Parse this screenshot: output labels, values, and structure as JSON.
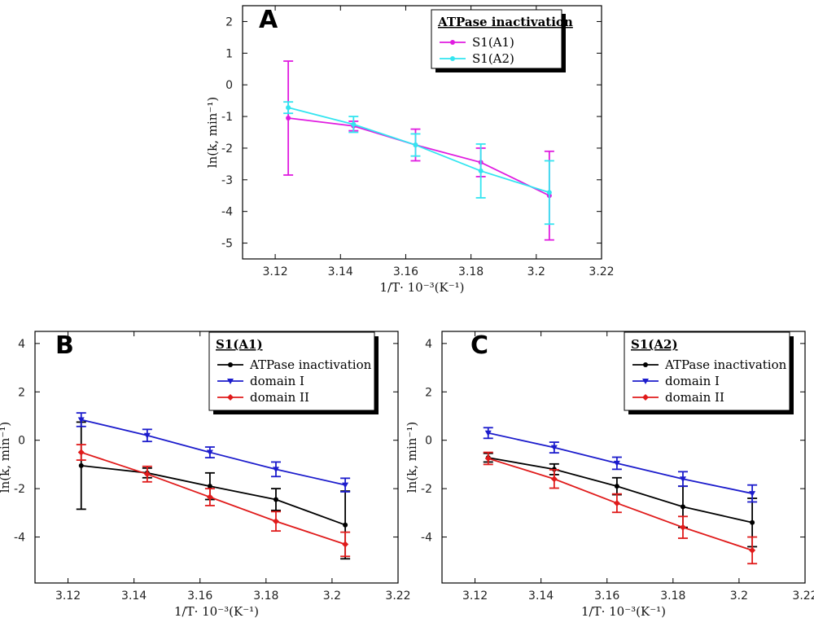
{
  "chart_data": [
    {
      "type": "line",
      "panel": "A",
      "legend_title": "ATPase inactivation",
      "legend_position": "top-right",
      "xlabel": "1/T· 10⁻³(K⁻¹)",
      "ylabel": "ln(k, min⁻¹)",
      "xlim": [
        3.11,
        3.22
      ],
      "ylim": [
        -5.5,
        2.5
      ],
      "x_ticks": [
        3.12,
        3.14,
        3.16,
        3.18,
        3.2,
        3.22
      ],
      "x_tick_labels": [
        "3.12",
        "3.14",
        "3.16",
        "3.18",
        "3.2",
        "3.22"
      ],
      "y_ticks": [
        2,
        1,
        0,
        -1,
        -2,
        -3,
        -4,
        -5
      ],
      "y_tick_labels": [
        "2",
        "1",
        "0",
        "-1",
        "-2",
        "-3",
        "-4",
        "-5"
      ],
      "x": [
        3.124,
        3.144,
        3.163,
        3.183,
        3.204
      ],
      "series": [
        {
          "name": "S1(A1)",
          "color": "#e01ce0",
          "marker": "circle",
          "values": [
            -1.05,
            -1.3,
            -1.9,
            -2.45,
            -3.5
          ],
          "errors": [
            1.8,
            0.15,
            0.5,
            0.45,
            1.4
          ]
        },
        {
          "name": "S1(A2)",
          "color": "#33e5f0",
          "marker": "circle",
          "values": [
            -0.72,
            -1.25,
            -1.9,
            -2.72,
            -3.4
          ],
          "errors": [
            0.18,
            0.25,
            0.35,
            0.85,
            1.0
          ]
        }
      ]
    },
    {
      "type": "line",
      "panel": "B",
      "legend_title": "S1(A1)",
      "legend_position": "top-right",
      "xlabel": "1/T· 10⁻³(K⁻¹)",
      "ylabel": "ln(k, min⁻¹)",
      "xlim": [
        3.11,
        3.22
      ],
      "ylim": [
        -5.9,
        4.5
      ],
      "x_ticks": [
        3.12,
        3.14,
        3.16,
        3.18,
        3.2,
        3.22
      ],
      "x_tick_labels": [
        "3.12",
        "3.14",
        "3.16",
        "3.18",
        "3.2",
        "3.22"
      ],
      "y_ticks": [
        4,
        2,
        0,
        -2,
        -4
      ],
      "y_tick_labels": [
        "4",
        "2",
        "0",
        "-2",
        "-4"
      ],
      "x": [
        3.124,
        3.144,
        3.163,
        3.183,
        3.204
      ],
      "series": [
        {
          "name": "ATPase inactivation",
          "color": "#000000",
          "marker": "circle",
          "values": [
            -1.05,
            -1.35,
            -1.9,
            -2.45,
            -3.5
          ],
          "errors": [
            1.8,
            0.2,
            0.55,
            0.45,
            1.4
          ]
        },
        {
          "name": "domain I",
          "color": "#1c1ccc",
          "marker": "triangle",
          "values": [
            0.85,
            0.2,
            -0.5,
            -1.2,
            -1.85
          ],
          "errors": [
            0.28,
            0.25,
            0.22,
            0.3,
            0.28
          ]
        },
        {
          "name": "domain II",
          "color": "#e01b1b",
          "marker": "diamond",
          "values": [
            -0.5,
            -1.4,
            -2.35,
            -3.35,
            -4.3
          ],
          "errors": [
            0.32,
            0.32,
            0.35,
            0.4,
            0.5
          ]
        }
      ]
    },
    {
      "type": "line",
      "panel": "C",
      "legend_title": "S1(A2)",
      "legend_position": "top-right",
      "xlabel": "1/T· 10⁻³(K⁻¹)",
      "ylabel": "ln(k, min⁻¹)",
      "xlim": [
        3.11,
        3.22
      ],
      "ylim": [
        -5.9,
        4.5
      ],
      "x_ticks": [
        3.12,
        3.14,
        3.16,
        3.18,
        3.2,
        3.22
      ],
      "x_tick_labels": [
        "3.12",
        "3.14",
        "3.16",
        "3.18",
        "3.2",
        "3.22"
      ],
      "y_ticks": [
        4,
        2,
        0,
        -2,
        -4
      ],
      "y_tick_labels": [
        "4",
        "2",
        "0",
        "-2",
        "-4"
      ],
      "x": [
        3.124,
        3.144,
        3.163,
        3.183,
        3.204
      ],
      "series": [
        {
          "name": "ATPase inactivation",
          "color": "#000000",
          "marker": "circle",
          "values": [
            -0.72,
            -1.2,
            -1.9,
            -2.75,
            -3.4
          ],
          "errors": [
            0.18,
            0.22,
            0.35,
            0.85,
            1.0
          ]
        },
        {
          "name": "domain I",
          "color": "#1c1ccc",
          "marker": "triangle",
          "values": [
            0.3,
            -0.3,
            -0.95,
            -1.6,
            -2.2
          ],
          "errors": [
            0.22,
            0.22,
            0.25,
            0.3,
            0.35
          ]
        },
        {
          "name": "domain II",
          "color": "#e01b1b",
          "marker": "diamond",
          "values": [
            -0.75,
            -1.6,
            -2.6,
            -3.6,
            -4.55
          ],
          "errors": [
            0.25,
            0.38,
            0.38,
            0.45,
            0.55
          ]
        }
      ]
    }
  ]
}
